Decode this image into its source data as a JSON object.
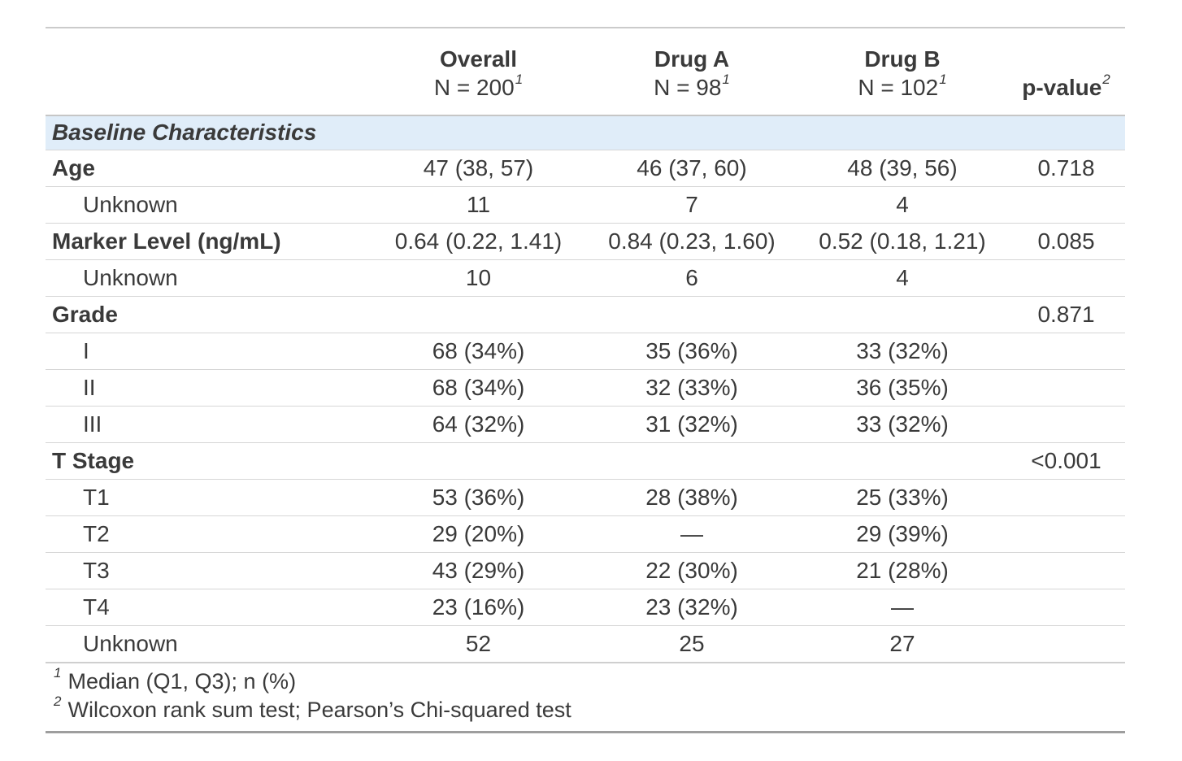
{
  "table": {
    "header": {
      "columns": [
        {
          "line1": "Overall",
          "line2": "N = 200",
          "footnote_mark": "1"
        },
        {
          "line1": "Drug A",
          "line2": "N = 98",
          "footnote_mark": "1"
        },
        {
          "line1": "Drug B",
          "line2": "N = 102",
          "footnote_mark": "1"
        },
        {
          "label": "p-value",
          "footnote_mark": "2"
        }
      ]
    },
    "group_row": {
      "label": "Baseline Characteristics"
    },
    "rows": [
      {
        "label": "Age",
        "overall": "47 (38, 57)",
        "drug_a": "46 (37, 60)",
        "drug_b": "48 (39, 56)",
        "p": "0.718"
      },
      {
        "label": "Unknown",
        "overall": "11",
        "drug_a": "7",
        "drug_b": "4",
        "p": ""
      },
      {
        "label": "Marker Level (ng/mL)",
        "overall": "0.64 (0.22, 1.41)",
        "drug_a": "0.84 (0.23, 1.60)",
        "drug_b": "0.52 (0.18, 1.21)",
        "p": "0.085"
      },
      {
        "label": "Unknown",
        "overall": "10",
        "drug_a": "6",
        "drug_b": "4",
        "p": ""
      },
      {
        "label": "Grade",
        "overall": "",
        "drug_a": "",
        "drug_b": "",
        "p": "0.871"
      },
      {
        "label": "I",
        "overall": "68 (34%)",
        "drug_a": "35 (36%)",
        "drug_b": "33 (32%)",
        "p": ""
      },
      {
        "label": "II",
        "overall": "68 (34%)",
        "drug_a": "32 (33%)",
        "drug_b": "36 (35%)",
        "p": ""
      },
      {
        "label": "III",
        "overall": "64 (32%)",
        "drug_a": "31 (32%)",
        "drug_b": "33 (32%)",
        "p": ""
      },
      {
        "label": "T Stage",
        "overall": "",
        "drug_a": "",
        "drug_b": "",
        "p": "<0.001"
      },
      {
        "label": "T1",
        "overall": "53 (36%)",
        "drug_a": "28 (38%)",
        "drug_b": "25 (33%)",
        "p": ""
      },
      {
        "label": "T2",
        "overall": "29 (20%)",
        "drug_a": "—",
        "drug_b": "29 (39%)",
        "p": ""
      },
      {
        "label": "T3",
        "overall": "43 (29%)",
        "drug_a": "22 (30%)",
        "drug_b": "21 (28%)",
        "p": ""
      },
      {
        "label": "T4",
        "overall": "23 (16%)",
        "drug_a": "23 (32%)",
        "drug_b": "—",
        "p": ""
      },
      {
        "label": "Unknown",
        "overall": "52",
        "drug_a": "25",
        "drug_b": "27",
        "p": ""
      }
    ],
    "footnotes": [
      {
        "mark": "1",
        "text": "Median (Q1, Q3); n (%)"
      },
      {
        "mark": "2",
        "text": "Wilcoxon rank sum test; Pearson’s Chi-squared test"
      }
    ],
    "colors": {
      "group_row_bg": "#e0edf9",
      "text": "#3a3a3a",
      "border_light": "#d6d6d6",
      "border_dark": "#9e9e9e"
    }
  }
}
